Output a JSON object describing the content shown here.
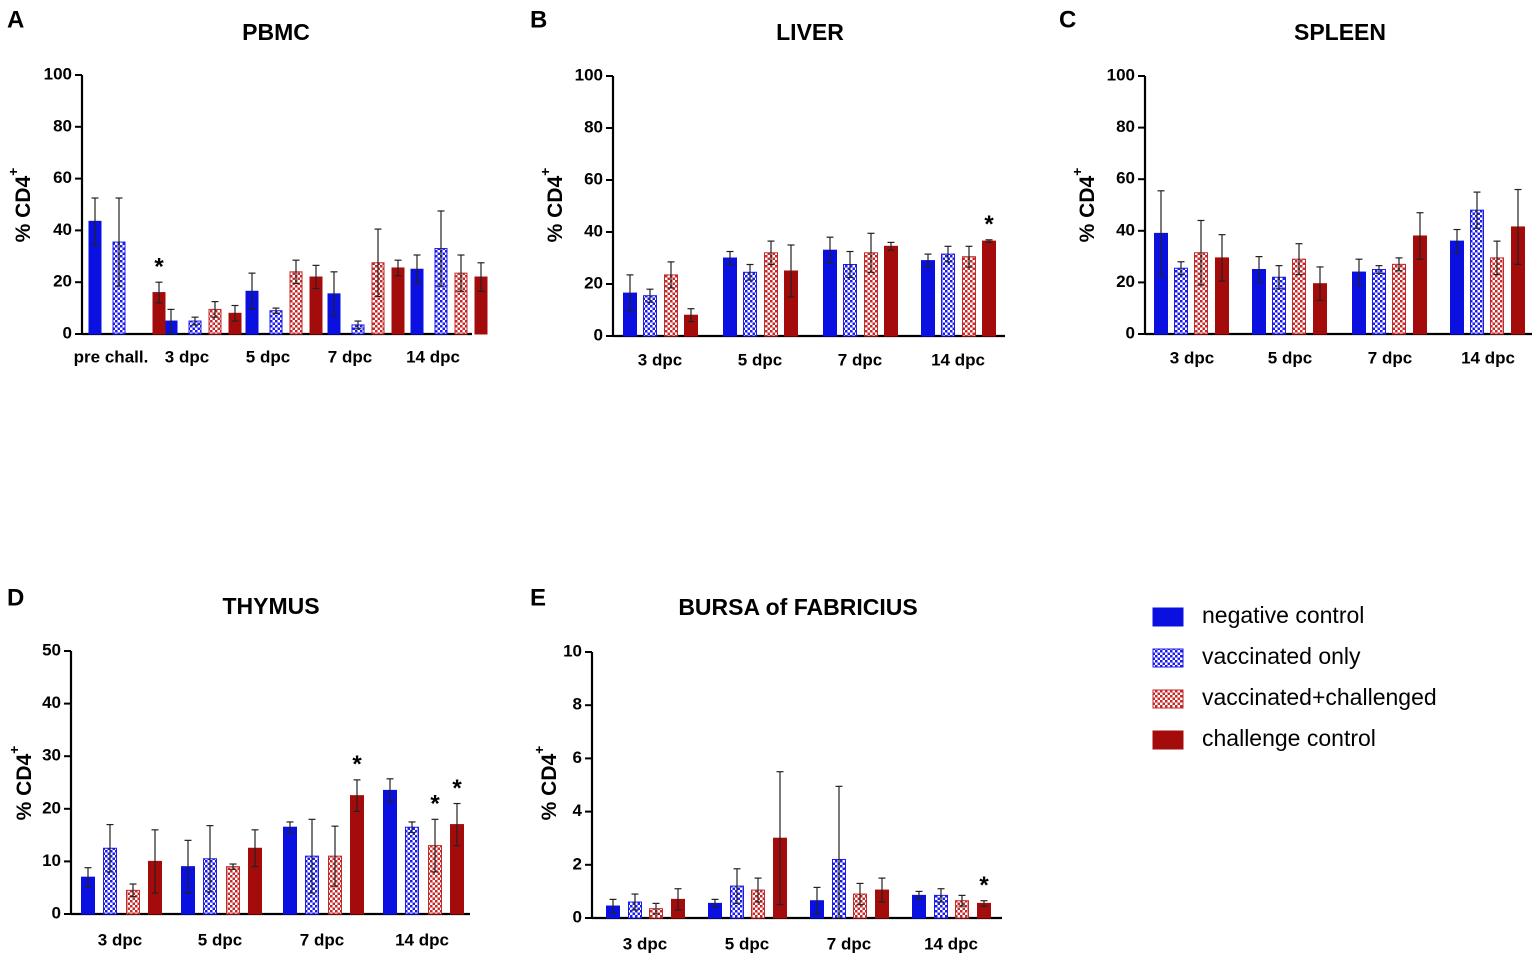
{
  "legend": {
    "items": [
      {
        "label": "negative control",
        "key": "neg"
      },
      {
        "label": "vaccinated only",
        "key": "vac"
      },
      {
        "label": "vaccinated+challenged",
        "key": "vacch"
      },
      {
        "label": "challenge control",
        "key": "ch"
      }
    ]
  },
  "colors": {
    "negative_control": "#0a10e0",
    "vaccinated_only": "#1c1ce8",
    "vaccinated_challenged": "#c42a2a",
    "challenge_control": "#a40c0c",
    "axis": "#000000"
  },
  "chart_data": [
    {
      "panel": "A",
      "title": "PBMC",
      "type": "bar",
      "ylabel": "% CD4",
      "ylabel_sup": "+",
      "ylim": [
        0,
        100
      ],
      "yticks": [
        "0",
        "20",
        "40",
        "60",
        "80",
        "100"
      ],
      "categories": [
        "pre chall.",
        "3 dpc",
        "5 dpc",
        "7 dpc",
        "14 dpc"
      ],
      "series": [
        {
          "name": "negative control",
          "values": [
            43.5,
            5,
            16.5,
            15.5,
            25
          ],
          "errors": [
            9,
            4.5,
            7,
            8.5,
            5.5
          ]
        },
        {
          "name": "vaccinated only",
          "values": [
            35.5,
            5,
            9,
            3.5,
            33
          ],
          "errors": [
            17,
            1.5,
            1,
            1.5,
            14.5
          ]
        },
        {
          "name": "vaccinated+challenged",
          "values": [
            null,
            9.5,
            24,
            27.5,
            23.5
          ],
          "errors": [
            null,
            3,
            4.5,
            13,
            7
          ]
        },
        {
          "name": "challenge control",
          "values": [
            16,
            8,
            22,
            25.5,
            22
          ],
          "errors": [
            4,
            3,
            4.5,
            3,
            5.5
          ]
        }
      ],
      "annotations": [
        {
          "category": "pre chall.",
          "series": "challenge control",
          "text": "*"
        }
      ]
    },
    {
      "panel": "B",
      "title": "LIVER",
      "type": "bar",
      "ylabel": "% CD4",
      "ylabel_sup": "+",
      "ylim": [
        0,
        100
      ],
      "yticks": [
        "0",
        "20",
        "40",
        "60",
        "80",
        "100"
      ],
      "categories": [
        "3 dpc",
        "5 dpc",
        "7 dpc",
        "14 dpc"
      ],
      "series": [
        {
          "name": "negative control",
          "values": [
            16.5,
            30,
            33,
            29
          ],
          "errors": [
            7,
            2.5,
            5,
            2.5
          ]
        },
        {
          "name": "vaccinated only",
          "values": [
            15.5,
            24.5,
            27.5,
            31.5
          ],
          "errors": [
            2.5,
            3,
            5,
            3
          ]
        },
        {
          "name": "vaccinated+challenged",
          "values": [
            23.5,
            32,
            32,
            30.5
          ],
          "errors": [
            5,
            4.5,
            7.5,
            4
          ]
        },
        {
          "name": "challenge control",
          "values": [
            8,
            25,
            34.5,
            36.5
          ],
          "errors": [
            2.5,
            10,
            1.5,
            0.5
          ]
        }
      ],
      "annotations": [
        {
          "category": "14 dpc",
          "series": "challenge control",
          "text": "*"
        }
      ]
    },
    {
      "panel": "C",
      "title": "SPLEEN",
      "type": "bar",
      "ylabel": "% CD4",
      "ylabel_sup": "+",
      "ylim": [
        0,
        100
      ],
      "yticks": [
        "0",
        "20",
        "40",
        "60",
        "80",
        "100"
      ],
      "categories": [
        "3 dpc",
        "5 dpc",
        "7 dpc",
        "14 dpc"
      ],
      "series": [
        {
          "name": "negative control",
          "values": [
            39,
            25,
            24,
            36
          ],
          "errors": [
            16.5,
            5,
            5,
            4.5
          ]
        },
        {
          "name": "vaccinated only",
          "values": [
            25.5,
            22,
            25,
            48
          ],
          "errors": [
            2.5,
            4.5,
            1.5,
            7
          ]
        },
        {
          "name": "vaccinated+challenged",
          "values": [
            31.5,
            29,
            27,
            29.5
          ],
          "errors": [
            12.5,
            6,
            2.5,
            6.5
          ]
        },
        {
          "name": "challenge control",
          "values": [
            29.5,
            19.5,
            38,
            41.5
          ],
          "errors": [
            9,
            6.5,
            9,
            14.5
          ]
        }
      ],
      "annotations": []
    },
    {
      "panel": "D",
      "title": "THYMUS",
      "type": "bar",
      "ylabel": "% CD4",
      "ylabel_sup": "+",
      "ylim": [
        0,
        50
      ],
      "yticks": [
        "0",
        "10",
        "20",
        "30",
        "40",
        "50"
      ],
      "categories": [
        "3 dpc",
        "5 dpc",
        "7 dpc",
        "14 dpc"
      ],
      "series": [
        {
          "name": "negative control",
          "values": [
            7,
            9,
            16.5,
            23.5
          ],
          "errors": [
            1.8,
            5,
            1,
            2.2
          ]
        },
        {
          "name": "vaccinated only",
          "values": [
            12.5,
            10.5,
            11,
            16.5
          ],
          "errors": [
            4.5,
            6.3,
            7,
            1
          ]
        },
        {
          "name": "vaccinated+challenged",
          "values": [
            4.5,
            9,
            11,
            13
          ],
          "errors": [
            1.2,
            0.5,
            5.7,
            5
          ]
        },
        {
          "name": "challenge control",
          "values": [
            10,
            12.5,
            22.5,
            17
          ],
          "errors": [
            6,
            3.5,
            3,
            4
          ]
        }
      ],
      "annotations": [
        {
          "category": "7 dpc",
          "series": "challenge control",
          "text": "*"
        },
        {
          "category": "14 dpc",
          "series": "vaccinated+challenged",
          "text": "*"
        },
        {
          "category": "14 dpc",
          "series": "challenge control",
          "text": "*"
        }
      ]
    },
    {
      "panel": "E",
      "title": "BURSA of FABRICIUS",
      "type": "bar",
      "ylabel": "% CD4",
      "ylabel_sup": "+",
      "ylim": [
        0,
        10
      ],
      "yticks": [
        "0",
        "2",
        "4",
        "6",
        "8",
        "10"
      ],
      "categories": [
        "3 dpc",
        "5 dpc",
        "7 dpc",
        "14 dpc"
      ],
      "series": [
        {
          "name": "negative control",
          "values": [
            0.45,
            0.55,
            0.65,
            0.85
          ],
          "errors": [
            0.25,
            0.15,
            0.5,
            0.15
          ]
        },
        {
          "name": "vaccinated only",
          "values": [
            0.6,
            1.2,
            2.2,
            0.85
          ],
          "errors": [
            0.3,
            0.65,
            2.75,
            0.25
          ]
        },
        {
          "name": "vaccinated+challenged",
          "values": [
            0.35,
            1.05,
            0.9,
            0.65
          ],
          "errors": [
            0.2,
            0.45,
            0.4,
            0.2
          ]
        },
        {
          "name": "challenge control",
          "values": [
            0.7,
            3,
            1.05,
            0.55
          ],
          "errors": [
            0.4,
            2.5,
            0.45,
            0.1
          ]
        }
      ],
      "annotations": [
        {
          "category": "14 dpc",
          "series": "challenge control",
          "text": "*"
        }
      ]
    }
  ]
}
